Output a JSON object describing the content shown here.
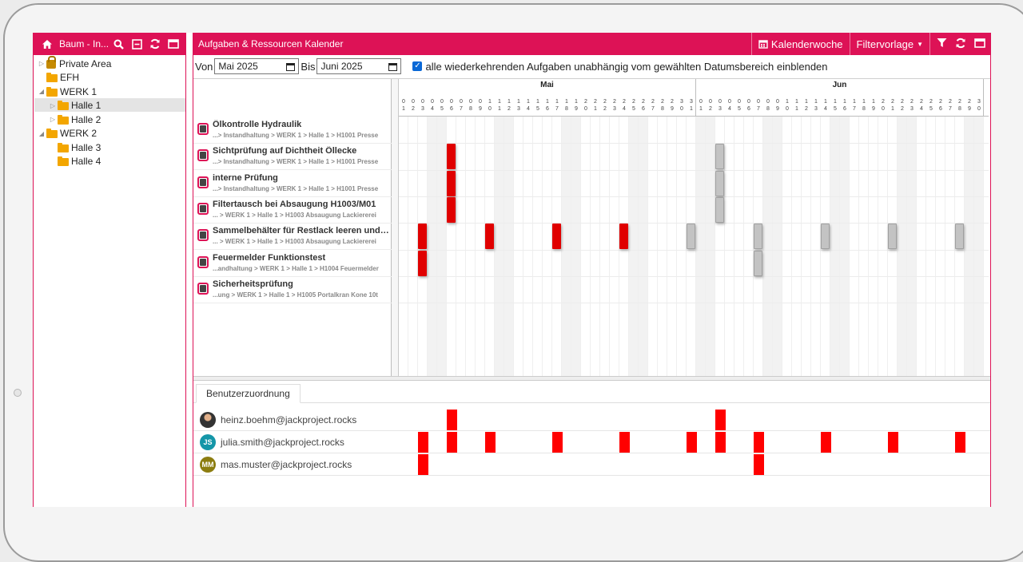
{
  "colors": {
    "accent": "#dd1256",
    "bar_red": "#e00000",
    "bar_gray": "#c3c3c3",
    "user_bar": "#ff0000"
  },
  "tree": {
    "title": "Baum - In...",
    "icons": [
      "home-icon",
      "search-icon",
      "collapse-icon",
      "refresh-icon",
      "window-icon"
    ],
    "items": [
      {
        "label": "Private Area",
        "icon": "lock-icon",
        "level": 0,
        "toggle": "▷"
      },
      {
        "label": "EFH",
        "icon": "folder-icon",
        "level": 0,
        "toggle": ""
      },
      {
        "label": "WERK 1",
        "icon": "folder-icon",
        "level": 0,
        "toggle": "◢"
      },
      {
        "label": "Halle 1",
        "icon": "folder-icon",
        "level": 1,
        "toggle": "▷",
        "selected": true
      },
      {
        "label": "Halle 2",
        "icon": "folder-icon",
        "level": 1,
        "toggle": "▷"
      },
      {
        "label": "WERK 2",
        "icon": "folder-icon",
        "level": 0,
        "toggle": "◢"
      },
      {
        "label": "Halle 3",
        "icon": "folder-icon",
        "level": 1,
        "toggle": ""
      },
      {
        "label": "Halle 4",
        "icon": "folder-icon",
        "level": 1,
        "toggle": ""
      }
    ]
  },
  "main": {
    "title": "Aufgaben & Ressourcen Kalender",
    "btn_week": "Kalenderwoche",
    "btn_filter": "Filtervorlage",
    "from_label": "Von",
    "from_value": "Mai 2025",
    "to_label": "Bis",
    "to_value": "Juni 2025",
    "checkbox_label": "alle wiederkehrenden Aufgaben unabhängig vom gewählten Datumsbereich einblenden"
  },
  "calendar": {
    "months": [
      {
        "name": "Mai",
        "days": 31
      },
      {
        "name": "Jun",
        "days": 30
      }
    ],
    "weekend_days": [
      3,
      4,
      10,
      11,
      17,
      18,
      24,
      25,
      31,
      32,
      38,
      39,
      45,
      46,
      52,
      53,
      59,
      60
    ]
  },
  "tasks": [
    {
      "title": "Ölkontrolle Hydraulik",
      "path": "...> Instandhaltung > WERK 1 > Halle 1 > H1001 Presse",
      "red": [],
      "gray": []
    },
    {
      "title": "Sichtprüfung auf Dichtheit Öllecke",
      "path": "...> Instandhaltung > WERK 1 > Halle 1 > H1001 Presse",
      "red": [
        5
      ],
      "gray": [
        33
      ]
    },
    {
      "title": "interne Prüfung",
      "path": "...> Instandhaltung > WERK 1 > Halle 1 > H1001 Presse",
      "red": [
        5
      ],
      "gray": [
        33
      ]
    },
    {
      "title": "Filtertausch bei Absaugung H1003/M01",
      "path": "... > WERK 1 > Halle 1 > H1003 Absaugung Lackiererei",
      "red": [
        5
      ],
      "gray": [
        33
      ]
    },
    {
      "title": "Sammelbehälter für Restlack leeren und re...",
      "path": "... > WERK 1 > Halle 1 > H1003 Absaugung Lackiererei",
      "red": [
        2,
        9,
        16,
        23
      ],
      "gray": [
        30,
        37,
        44,
        51,
        58
      ]
    },
    {
      "title": "Feuermelder Funktionstest",
      "path": "...andhaltung > WERK 1 > Halle 1 > H1004 Feuermelder",
      "red": [
        2
      ],
      "gray": [
        37
      ]
    },
    {
      "title": "Sicherheitsprüfung",
      "path": "...ung > WERK 1 > Halle 1 > H1005 Portalkran Kone 10t",
      "red": [],
      "gray": []
    }
  ],
  "bottom": {
    "tab": "Benutzerzuordnung",
    "users": [
      {
        "name": "heinz.boehm@jackproject.rocks",
        "initials": "",
        "avatar": "photo",
        "days": [
          5,
          33
        ]
      },
      {
        "name": "julia.smith@jackproject.rocks",
        "initials": "JS",
        "avatar": "js",
        "days": [
          2,
          5,
          9,
          16,
          23,
          30,
          33,
          37,
          44,
          51,
          58
        ]
      },
      {
        "name": "mas.muster@jackproject.rocks",
        "initials": "MM",
        "avatar": "mm",
        "days": [
          2,
          37
        ]
      }
    ]
  }
}
